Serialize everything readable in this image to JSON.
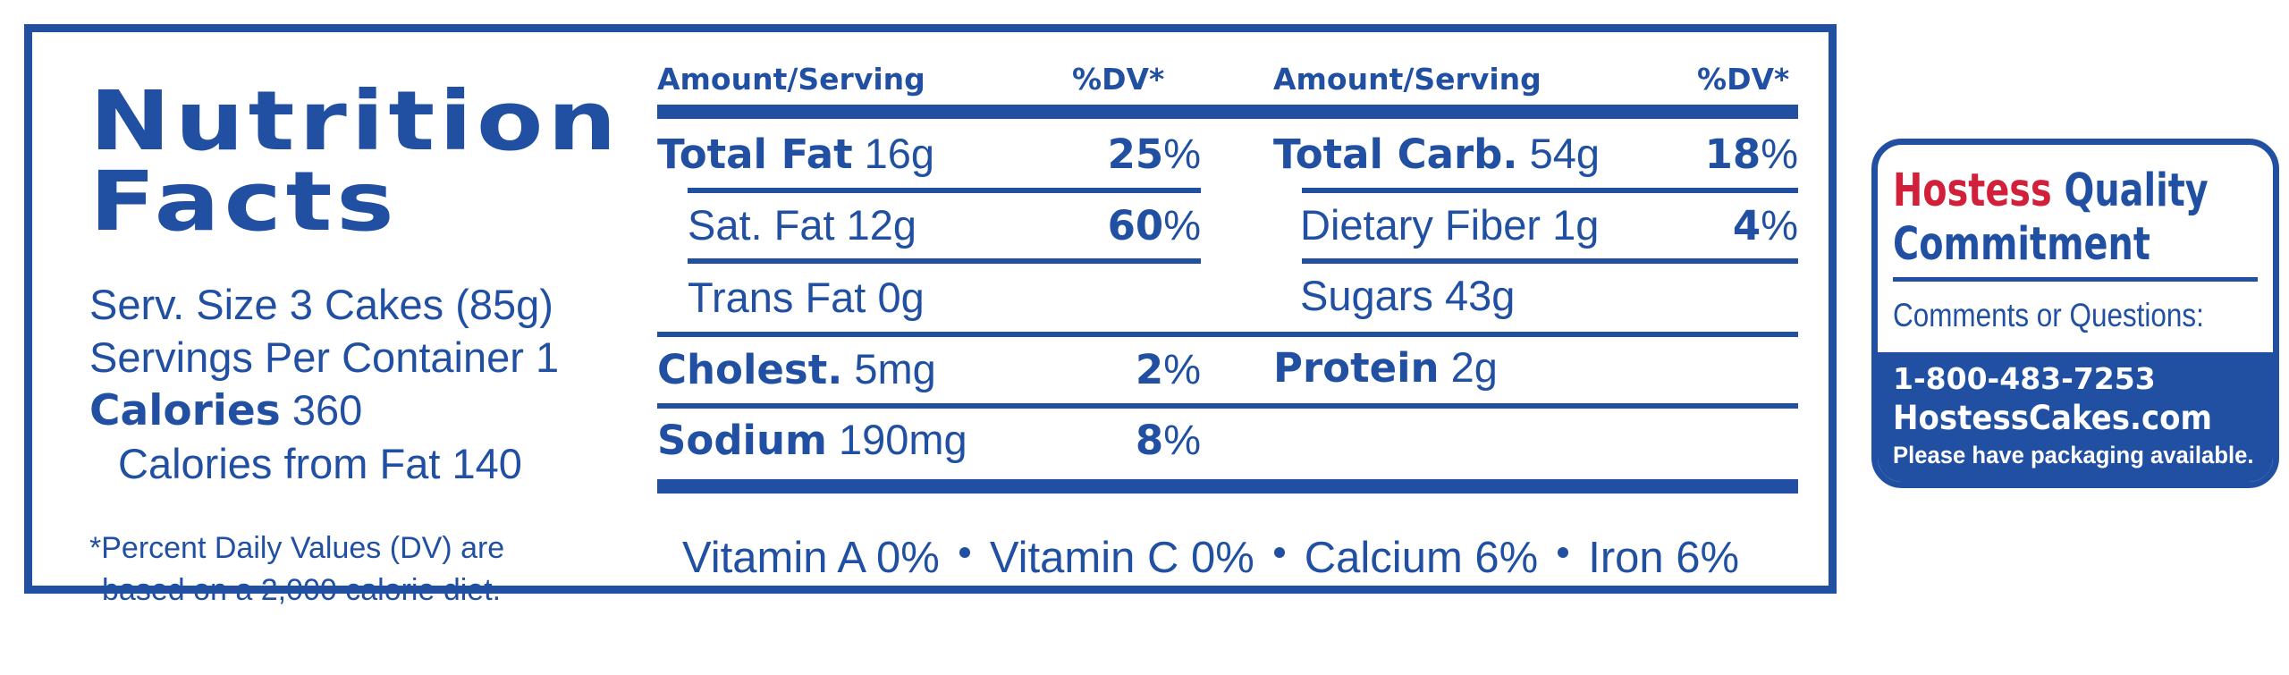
{
  "label": {
    "title_line1": "Nutrition",
    "title_line2": "Facts",
    "serving_size": "Serv. Size 3 Cakes (85g)",
    "servings_per_container": "Servings Per Container 1",
    "calories_label": "Calories",
    "calories_value": "360",
    "calories_from_fat": "Calories from Fat 140",
    "footnote_line1": "*Percent Daily Values (DV) are",
    "footnote_line2": "based on a 2,000 calorie diet."
  },
  "headers": {
    "amount_serving": "Amount/Serving",
    "dv": "%DV*"
  },
  "left_rows": [
    {
      "name": "Total Fat",
      "amount": "16g",
      "dv_num": "25",
      "dv_pct": "%"
    },
    {
      "name": "Sat. Fat",
      "amount": "12g",
      "dv_num": "60",
      "dv_pct": "%"
    },
    {
      "name": "Trans Fat",
      "amount": "0g",
      "dv_num": "",
      "dv_pct": ""
    },
    {
      "name": "Cholest.",
      "amount": "5mg",
      "dv_num": "2",
      "dv_pct": "%"
    },
    {
      "name": "Sodium",
      "amount": "190mg",
      "dv_num": "8",
      "dv_pct": "%"
    }
  ],
  "right_rows": [
    {
      "name": "Total Carb.",
      "amount": "54g",
      "dv_num": "18",
      "dv_pct": "%"
    },
    {
      "name": "Dietary Fiber",
      "amount": "1g",
      "dv_num": "4",
      "dv_pct": "%"
    },
    {
      "name": "Sugars",
      "amount": "43g",
      "dv_num": "",
      "dv_pct": ""
    },
    {
      "name": "Protein",
      "amount": "2g",
      "dv_num": "",
      "dv_pct": ""
    }
  ],
  "vitamins": [
    "Vitamin A 0%",
    "Vitamin C 0%",
    "Calcium 6%",
    "Iron 6%"
  ],
  "card": {
    "brand": "Hostess",
    "quality": "Quality",
    "commitment": "Commitment",
    "question": "Comments or Questions:",
    "phone": "1-800-483-7253",
    "website": "HostessCakes.com",
    "note": "Please have packaging available."
  },
  "colors": {
    "blue": "#2150a3",
    "red": "#d0203a"
  }
}
